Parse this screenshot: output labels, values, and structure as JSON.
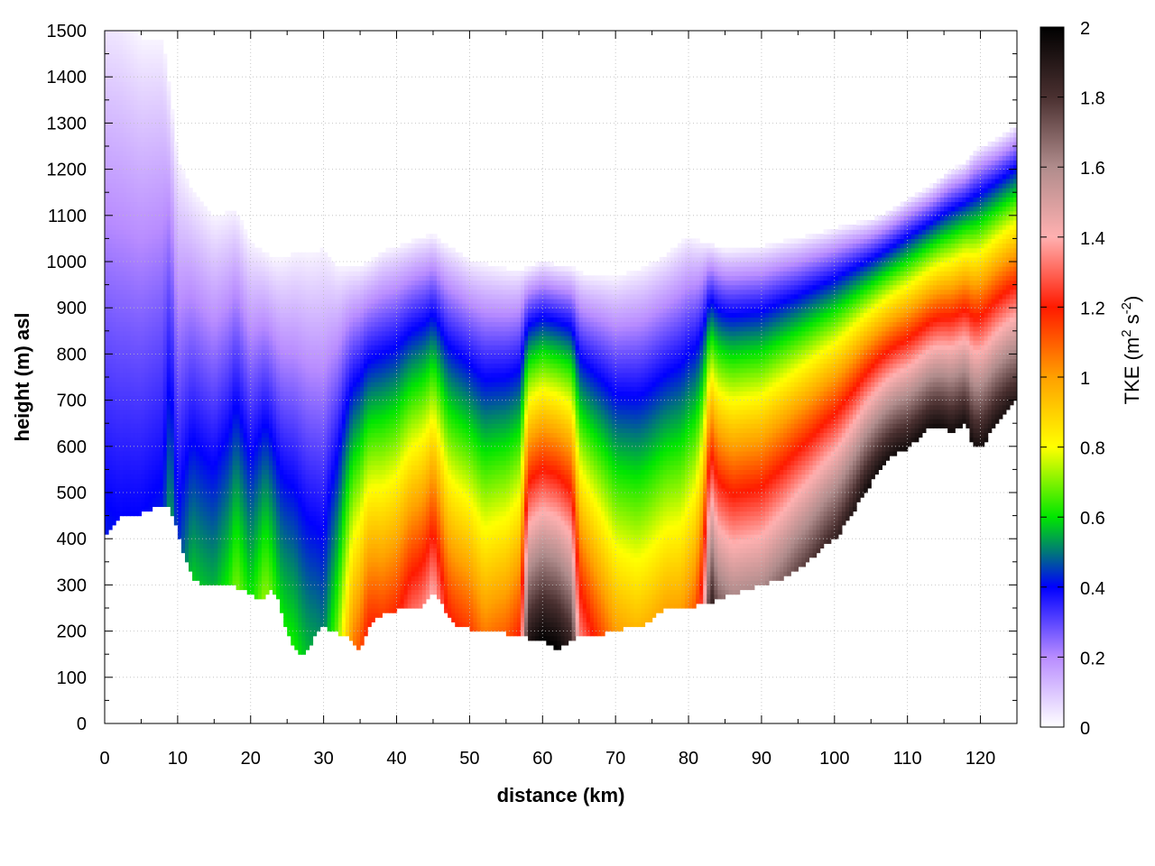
{
  "chart_data": {
    "type": "heatmap",
    "title": "",
    "xlabel": "distance (km)",
    "ylabel": "height (m) asl",
    "xlim": [
      0,
      125
    ],
    "ylim": [
      0,
      1500
    ],
    "x_ticks": [
      0,
      10,
      20,
      30,
      40,
      50,
      60,
      70,
      80,
      90,
      100,
      110,
      120
    ],
    "y_ticks": [
      0,
      100,
      200,
      300,
      400,
      500,
      600,
      700,
      800,
      900,
      1000,
      1100,
      1200,
      1300,
      1400,
      1500
    ],
    "grid": true,
    "colorbar": {
      "label_main": "TKE (m",
      "label_sup1": "2",
      "label_mid": " s",
      "label_sup2": "-2",
      "label_end": ")",
      "range": [
        0,
        2
      ],
      "ticks": [
        "0",
        "0.2",
        "0.4",
        "0.6",
        "0.8",
        "1",
        "1.2",
        "1.4",
        "1.6",
        "1.8",
        "2"
      ],
      "stops": [
        {
          "v": 0.0,
          "c": "#ffffff"
        },
        {
          "v": 0.2,
          "c": "#b88cff"
        },
        {
          "v": 0.4,
          "c": "#0000ff"
        },
        {
          "v": 0.5,
          "c": "#007878"
        },
        {
          "v": 0.6,
          "c": "#00e600"
        },
        {
          "v": 0.8,
          "c": "#ffff00"
        },
        {
          "v": 1.0,
          "c": "#ffa000"
        },
        {
          "v": 1.2,
          "c": "#ff1a00"
        },
        {
          "v": 1.4,
          "c": "#ffb0b0"
        },
        {
          "v": 1.6,
          "c": "#b08c8c"
        },
        {
          "v": 1.8,
          "c": "#4a3030"
        },
        {
          "v": 2.0,
          "c": "#000000"
        }
      ]
    },
    "terrain": {
      "x": [
        0,
        1,
        2,
        3,
        4,
        5,
        6,
        7,
        8,
        9,
        10,
        11,
        12,
        13,
        14,
        15,
        16,
        17,
        18,
        19,
        20,
        21,
        22,
        23,
        24,
        25,
        26,
        27,
        28,
        29,
        30,
        31,
        32,
        33,
        34,
        35,
        36,
        37,
        38,
        39,
        40,
        41,
        42,
        43,
        44,
        45,
        46,
        47,
        48,
        49,
        50,
        51,
        52,
        53,
        54,
        55,
        56,
        57,
        58,
        59,
        60,
        61,
        62,
        63,
        64,
        65,
        66,
        67,
        68,
        69,
        70,
        71,
        72,
        73,
        74,
        75,
        76,
        77,
        78,
        79,
        80,
        81,
        82,
        83,
        84,
        85,
        86,
        87,
        88,
        89,
        90,
        91,
        92,
        93,
        94,
        95,
        96,
        97,
        98,
        99,
        100,
        101,
        102,
        103,
        104,
        105,
        106,
        107,
        108,
        109,
        110,
        111,
        112,
        113,
        114,
        115,
        116,
        117,
        118,
        119,
        120,
        121,
        122,
        123,
        124,
        125
      ],
      "height": [
        410,
        430,
        445,
        455,
        450,
        455,
        462,
        468,
        470,
        465,
        420,
        360,
        315,
        302,
        298,
        300,
        300,
        298,
        295,
        290,
        280,
        270,
        275,
        290,
        260,
        200,
        160,
        150,
        165,
        200,
        210,
        200,
        195,
        190,
        175,
        160,
        200,
        225,
        235,
        240,
        245,
        248,
        250,
        245,
        262,
        290,
        270,
        235,
        215,
        210,
        205,
        203,
        202,
        201,
        200,
        195,
        193,
        190,
        185,
        184,
        180,
        170,
        162,
        170,
        180,
        190,
        185,
        188,
        192,
        198,
        205,
        205,
        206,
        210,
        216,
        225,
        240,
        255,
        250,
        248,
        250,
        255,
        258,
        260,
        268,
        275,
        280,
        285,
        290,
        295,
        300,
        305,
        310,
        315,
        325,
        335,
        345,
        360,
        375,
        390,
        400,
        420,
        445,
        470,
        500,
        520,
        545,
        565,
        580,
        590,
        595,
        610,
        625,
        640,
        645,
        640,
        630,
        640,
        650,
        600,
        595,
        620,
        650,
        670,
        690,
        700
      ]
    },
    "tke_profile_peak": [
      [
        0,
        0.42
      ],
      [
        2,
        0.4
      ],
      [
        5,
        0.4
      ],
      [
        8,
        0.42
      ],
      [
        9,
        0.55
      ],
      [
        10,
        0.42
      ],
      [
        12,
        0.58
      ],
      [
        15,
        0.55
      ],
      [
        17,
        0.62
      ],
      [
        18,
        0.7
      ],
      [
        20,
        0.6
      ],
      [
        22,
        0.72
      ],
      [
        24,
        0.6
      ],
      [
        26,
        0.62
      ],
      [
        28,
        0.55
      ],
      [
        30,
        0.5
      ],
      [
        32,
        0.7
      ],
      [
        34,
        1.05
      ],
      [
        36,
        1.2
      ],
      [
        38,
        1.15
      ],
      [
        40,
        1.18
      ],
      [
        42,
        1.3
      ],
      [
        44,
        1.35
      ],
      [
        45,
        1.4
      ],
      [
        47,
        1.2
      ],
      [
        50,
        1.15
      ],
      [
        52,
        1.05
      ],
      [
        55,
        1.1
      ],
      [
        57,
        1.2
      ],
      [
        58,
        1.9
      ],
      [
        60,
        2.0
      ],
      [
        62,
        2.0
      ],
      [
        64,
        1.85
      ],
      [
        65,
        1.35
      ],
      [
        67,
        1.2
      ],
      [
        70,
        1.0
      ],
      [
        73,
        0.95
      ],
      [
        76,
        0.98
      ],
      [
        79,
        1.0
      ],
      [
        81,
        1.1
      ],
      [
        82,
        1.3
      ],
      [
        83,
        1.9
      ],
      [
        84,
        1.7
      ],
      [
        86,
        1.6
      ],
      [
        90,
        1.6
      ],
      [
        95,
        1.75
      ],
      [
        100,
        1.85
      ],
      [
        105,
        1.95
      ],
      [
        110,
        1.95
      ],
      [
        115,
        1.95
      ],
      [
        120,
        1.95
      ],
      [
        125,
        1.9
      ]
    ],
    "tke_top": [
      [
        0,
        1350
      ],
      [
        2,
        1350
      ],
      [
        5,
        1300
      ],
      [
        8,
        1300
      ],
      [
        9,
        1200
      ],
      [
        10,
        1080
      ],
      [
        12,
        1000
      ],
      [
        15,
        950
      ],
      [
        18,
        960
      ],
      [
        20,
        900
      ],
      [
        22,
        880
      ],
      [
        25,
        860
      ],
      [
        28,
        860
      ],
      [
        30,
        880
      ],
      [
        32,
        840
      ],
      [
        35,
        830
      ],
      [
        38,
        870
      ],
      [
        40,
        880
      ],
      [
        42,
        890
      ],
      [
        44,
        900
      ],
      [
        45,
        910
      ],
      [
        47,
        880
      ],
      [
        50,
        850
      ],
      [
        53,
        840
      ],
      [
        56,
        830
      ],
      [
        58,
        830
      ],
      [
        60,
        840
      ],
      [
        62,
        830
      ],
      [
        64,
        830
      ],
      [
        66,
        820
      ],
      [
        70,
        820
      ],
      [
        74,
        840
      ],
      [
        78,
        880
      ],
      [
        80,
        900
      ],
      [
        82,
        890
      ],
      [
        85,
        880
      ],
      [
        90,
        890
      ],
      [
        95,
        910
      ],
      [
        100,
        940
      ],
      [
        105,
        980
      ],
      [
        110,
        1030
      ],
      [
        115,
        1080
      ],
      [
        120,
        1120
      ],
      [
        125,
        1180
      ]
    ]
  }
}
